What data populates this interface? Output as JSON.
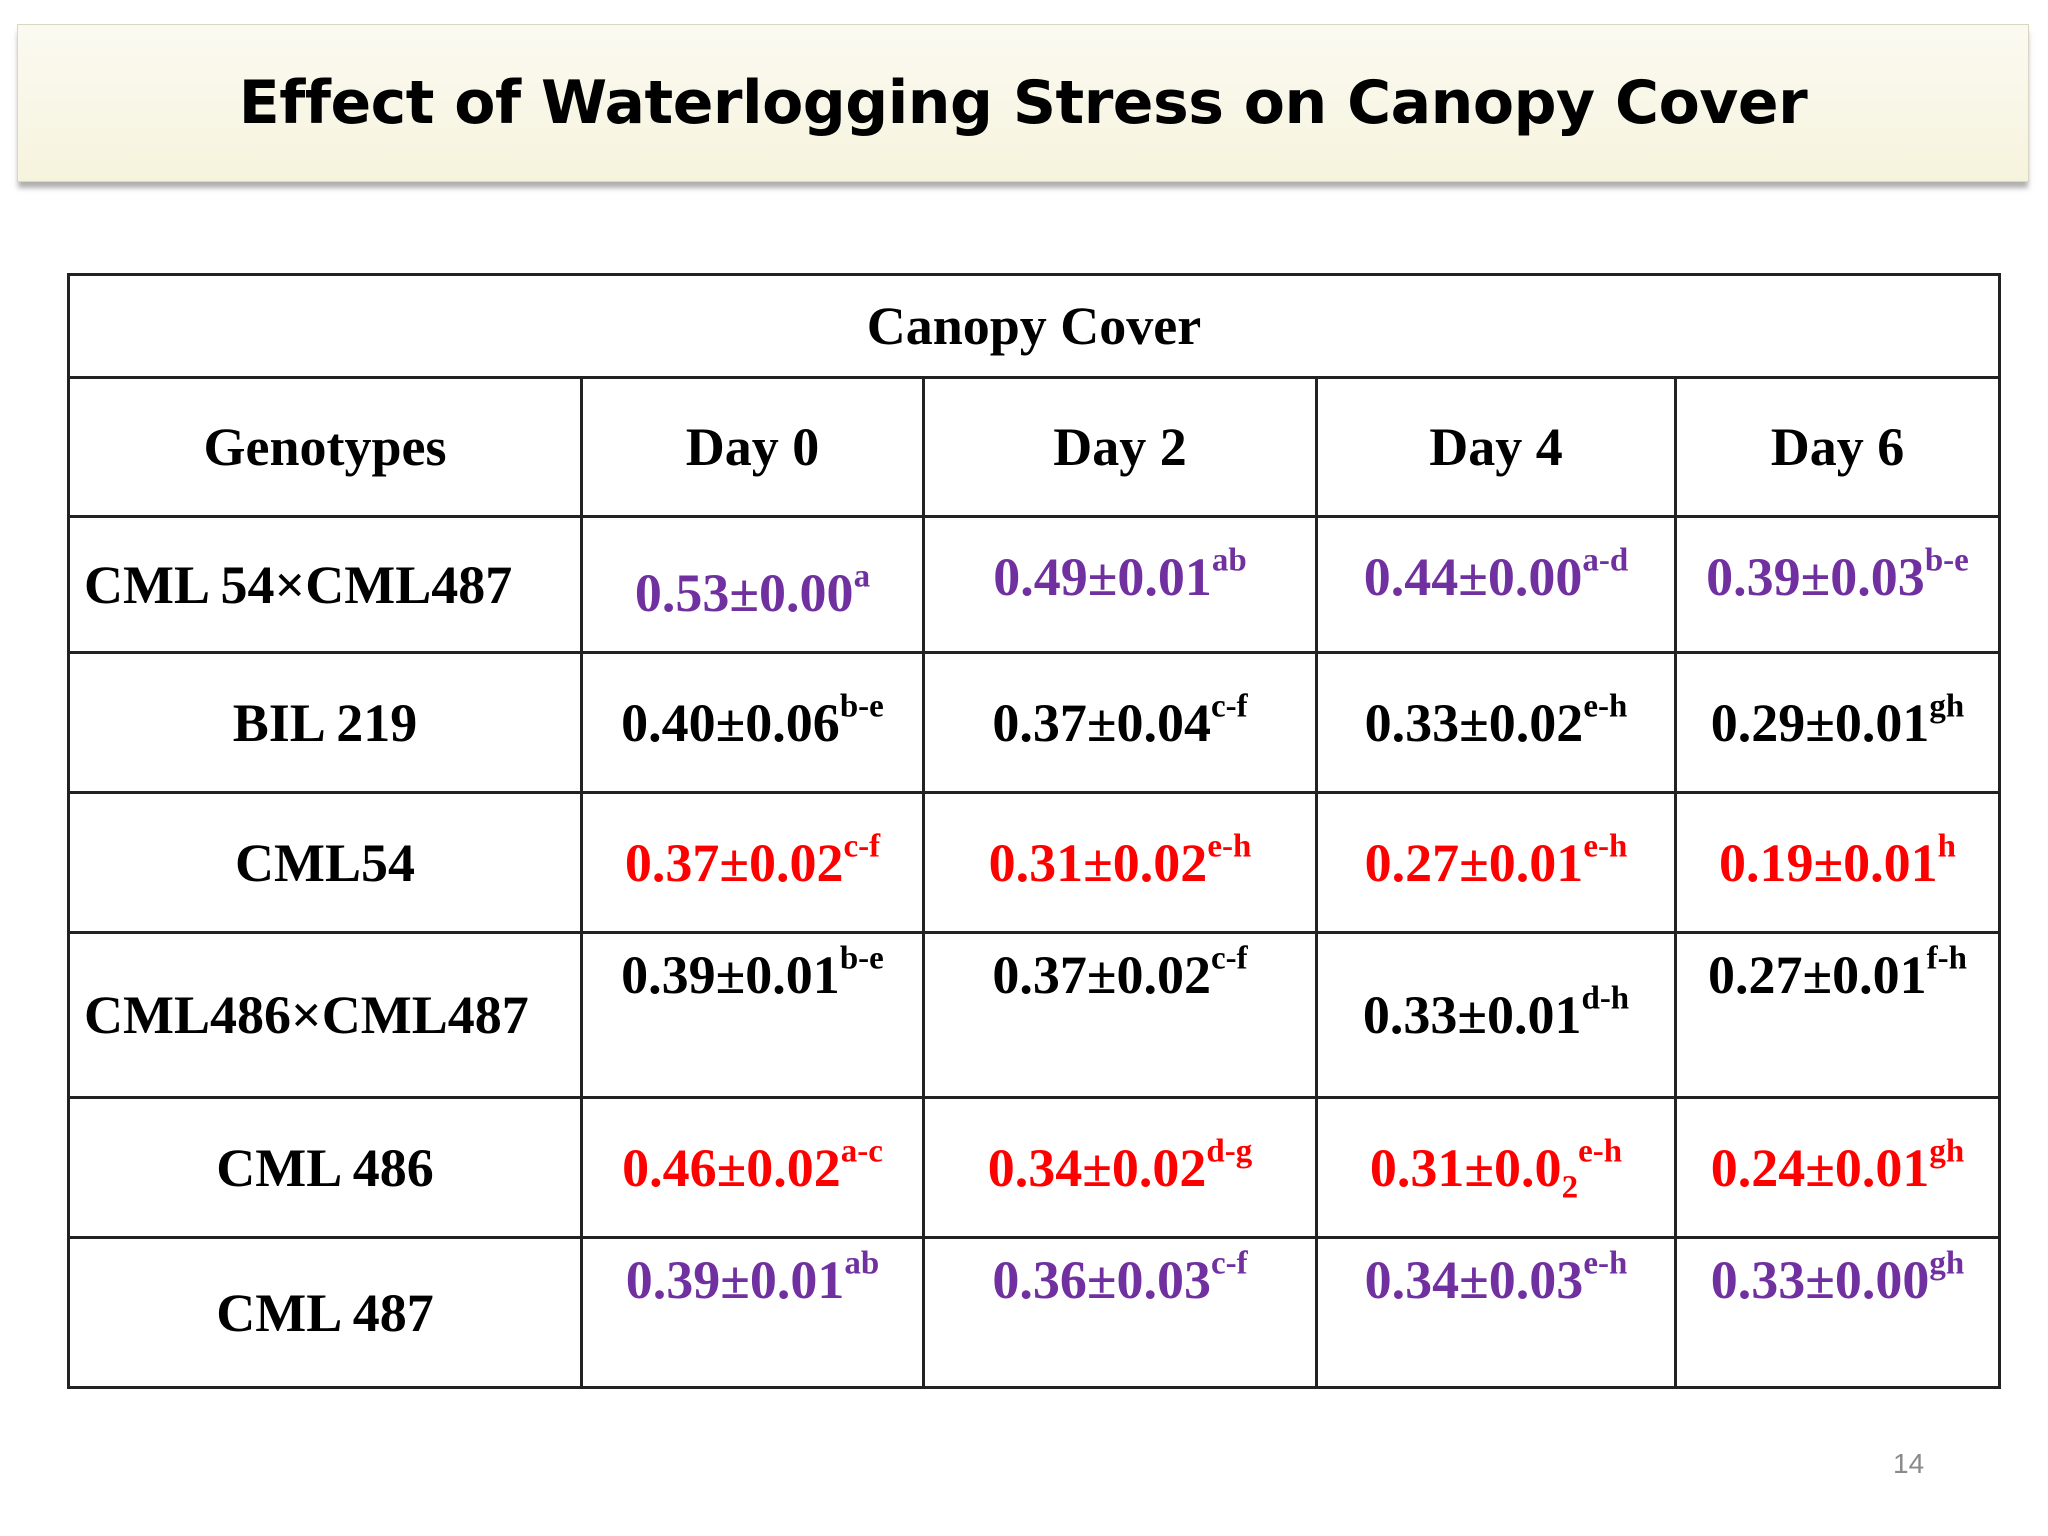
{
  "slide": {
    "title": "Effect of Waterlogging Stress on Canopy Cover",
    "page_number": "14"
  },
  "colors": {
    "purple": "#7030a0",
    "red": "#ff0000",
    "black": "#000000",
    "banner_bg": "#f6f3dd"
  },
  "table": {
    "caption": "Canopy Cover",
    "headers": [
      "Genotypes",
      "Day 0",
      "Day 2",
      "Day 4",
      "Day 6"
    ],
    "rows": [
      {
        "genotype": "CML 54×CML487",
        "cells": [
          {
            "value": "0.53±0.00",
            "letters": "a"
          },
          {
            "value": "0.49±0.01",
            "letters": "ab"
          },
          {
            "value": "0.44±0.00",
            "letters": "a-d"
          },
          {
            "value": "0.39±0.03",
            "letters": "b-e"
          }
        ]
      },
      {
        "genotype": "BIL 219",
        "cells": [
          {
            "value": "0.40±0.06",
            "letters": "b-e"
          },
          {
            "value": "0.37±0.04",
            "letters": "c-f"
          },
          {
            "value": "0.33±0.02",
            "letters": "e-h"
          },
          {
            "value": "0.29±0.01",
            "letters": "gh"
          }
        ]
      },
      {
        "genotype": "CML54",
        "cells": [
          {
            "value": "0.37±0.02",
            "letters": "c-f"
          },
          {
            "value": "0.31±0.02",
            "letters": "e-h"
          },
          {
            "value": "0.27±0.01",
            "letters": "e-h"
          },
          {
            "value": "0.19±0.01",
            "letters": "h"
          }
        ]
      },
      {
        "genotype": "CML486×CML487",
        "cells": [
          {
            "value": "0.39±0.01",
            "letters": "b-e"
          },
          {
            "value": "0.37±0.02",
            "letters": "c-f"
          },
          {
            "value": "0.33±0.01",
            "letters": "d-h"
          },
          {
            "value": "0.27±0.01",
            "letters": "f-h"
          }
        ]
      },
      {
        "genotype": "CML 486",
        "cells": [
          {
            "value": "0.46±0.02",
            "letters": "a-c"
          },
          {
            "value": "0.34±0.02",
            "letters": "d-g"
          },
          {
            "value": "0.31±0.0",
            "subscript": "2",
            "letters": "e-h"
          },
          {
            "value": "0.24±0.01",
            "letters": "gh"
          }
        ]
      },
      {
        "genotype": "CML 487",
        "cells": [
          {
            "value": "0.39±0.01",
            "letters": "ab"
          },
          {
            "value": "0.36±0.03",
            "letters": "c-f"
          },
          {
            "value": "0.34±0.03",
            "letters": "e-h"
          },
          {
            "value": "0.33±0.00",
            "letters": "gh"
          }
        ]
      }
    ]
  }
}
